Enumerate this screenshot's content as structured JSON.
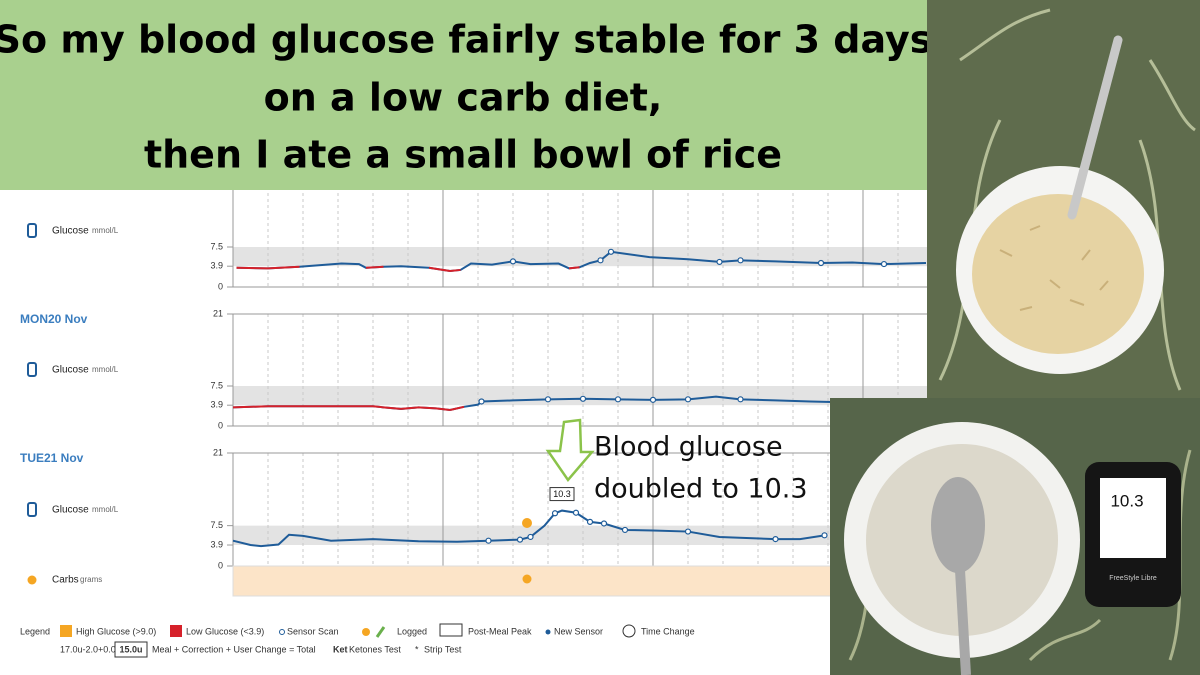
{
  "title": {
    "lines": [
      "So my blood glucose fairly stable for 3 days",
      "on a low carb diet,",
      "then I ate a small bowl of rice"
    ]
  },
  "chart_data": [
    {
      "type": "line",
      "ylabel": "Glucose",
      "yunit": "mmol/L",
      "xlim": [
        0,
        24
      ],
      "ylim": [
        0,
        21
      ],
      "yticks": [
        0,
        3.9,
        7.5
      ],
      "grid": true,
      "color": "#1f5c99",
      "low_color": "#d6212a",
      "x": [
        0.1,
        1,
        1.9,
        3.1,
        3.6,
        3.8,
        4.3,
        4.8,
        5.6,
        6.2,
        6.5,
        6.8,
        7.4,
        8,
        8.5,
        9.3,
        9.6,
        9.9,
        10.2,
        10.5,
        10.8,
        11.9,
        13,
        13.9,
        14.5,
        15.5,
        16.8,
        17.7,
        18.6,
        19.8
      ],
      "values": [
        3.6,
        3.5,
        3.8,
        4.4,
        4.3,
        3.6,
        3.8,
        3.9,
        3.6,
        3.0,
        3.2,
        4.4,
        4.2,
        4.8,
        4.3,
        4.4,
        3.5,
        3.7,
        4.5,
        5.0,
        6.6,
        5.6,
        5.2,
        4.7,
        5.0,
        4.8,
        4.5,
        4.6,
        4.3,
        4.5
      ],
      "scans": {
        "x": [
          8,
          10.5,
          10.8,
          13.9,
          14.5,
          16.8,
          18.6
        ],
        "values": [
          4.8,
          5.0,
          6.6,
          4.7,
          5.0,
          4.5,
          4.3
        ]
      }
    },
    {
      "type": "line",
      "day_label": "MON20 Nov",
      "ylabel": "Glucose",
      "yunit": "mmol/L",
      "xlim": [
        0,
        24
      ],
      "ylim": [
        0,
        21
      ],
      "yticks": [
        0,
        3.9,
        7.5,
        21
      ],
      "grid": true,
      "color": "#1f5c99",
      "low_color": "#d6212a",
      "x": [
        0,
        1,
        3,
        4,
        4.3,
        4.8,
        5.3,
        5.8,
        6.2,
        6.6,
        7,
        7.1,
        8,
        9,
        10,
        11,
        12,
        13,
        13.8,
        14.5,
        15.5,
        16.5,
        17.1
      ],
      "values": [
        3.5,
        3.7,
        3.7,
        3.7,
        3.5,
        3.2,
        3.5,
        3.3,
        3.0,
        3.6,
        4.0,
        4.6,
        4.8,
        5.0,
        5.1,
        5.0,
        4.9,
        5.0,
        5.5,
        5.0,
        4.8,
        4.6,
        4.5
      ],
      "scans": {
        "x": [
          7.1,
          9,
          10,
          11,
          12,
          13,
          14.5
        ],
        "values": [
          4.6,
          5.0,
          5.1,
          5.0,
          4.9,
          5.0,
          5.0
        ]
      }
    },
    {
      "type": "line",
      "day_label": "TUE21 Nov",
      "ylabel": "Glucose",
      "yunit": "mmol/L",
      "carbs_label": "Carbs",
      "carbs_unit": "grams",
      "carb_events": [
        8.4
      ],
      "xlim": [
        0,
        24
      ],
      "ylim": [
        0,
        21
      ],
      "yticks": [
        0,
        3.9,
        7.5,
        21
      ],
      "grid": true,
      "color": "#1f5c99",
      "low_color": "#d6212a",
      "x": [
        0,
        0.5,
        0.8,
        1.3,
        1.6,
        2,
        2.8,
        4,
        5.3,
        6.4,
        7.3,
        8.2,
        8.5,
        8.9,
        9.2,
        9.4,
        9.8,
        10.2,
        10.6,
        11.2,
        12,
        13,
        13.9,
        15.5,
        16.2,
        16.9
      ],
      "values": [
        4.7,
        3.9,
        3.7,
        4.0,
        5.8,
        5.6,
        4.7,
        5.0,
        4.6,
        4.5,
        4.7,
        4.9,
        5.4,
        7.5,
        9.8,
        10.3,
        9.9,
        8.2,
        7.9,
        6.7,
        6.6,
        6.4,
        5.4,
        5.0,
        5.0,
        5.7
      ],
      "scans": {
        "x": [
          7.3,
          8.2,
          8.5,
          9.2,
          9.8,
          10.2,
          10.6,
          11.2,
          13,
          15.5,
          16.9
        ],
        "values": [
          4.7,
          4.9,
          5.4,
          9.8,
          9.9,
          8.2,
          7.9,
          6.7,
          6.4,
          5.0,
          5.7
        ]
      },
      "peak": {
        "x": 9.4,
        "value": 10.3
      }
    }
  ],
  "annotation": {
    "lines": [
      "Blood glucose",
      "doubled to 10.3"
    ]
  },
  "legend": {
    "title": "Legend",
    "items": [
      "High Glucose (>9.0)",
      "Low Glucose (<3.9)",
      "Sensor Scan",
      "Logged",
      "Post-Meal Peak",
      "New Sensor",
      "Time Change"
    ],
    "insulin": "17.0u-2.0+0.0",
    "total": "15.0u",
    "formula": "Meal + Correction + User Change = Total",
    "ket": "Ket",
    "ketones": "Ketones Test",
    "strip": "Strip Test"
  },
  "meter": {
    "reading": 10.3,
    "brand": "FreeStyle Libre"
  }
}
